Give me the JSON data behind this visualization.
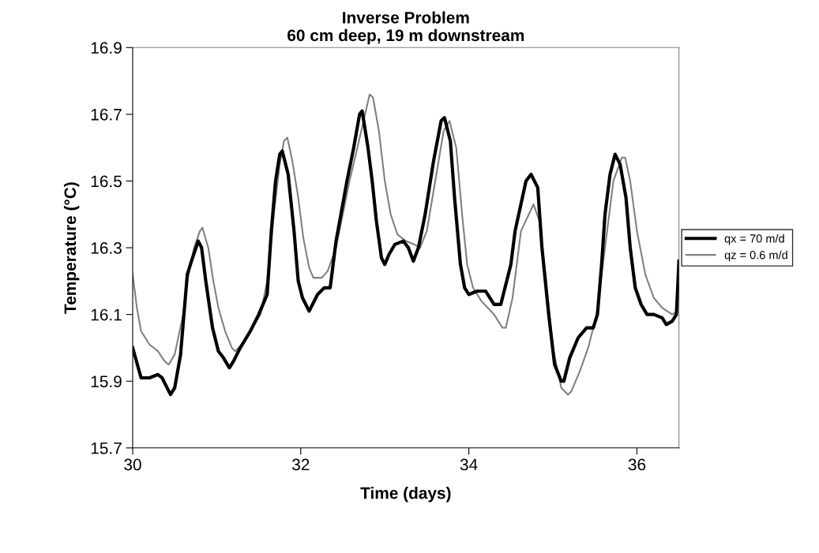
{
  "chart_data": {
    "type": "line",
    "title": "Inverse Problem\n60 cm deep, 19 m downstream",
    "xlabel": "Time (days)",
    "ylabel": "Temperature (°C)",
    "xlim": [
      30,
      36.5
    ],
    "xticks": [
      30,
      32,
      34,
      36
    ],
    "ylim": [
      15.7,
      16.9
    ],
    "yticks": [
      15.7,
      15.9,
      16.1,
      16.3,
      16.5,
      16.7,
      16.9
    ],
    "grid": false,
    "legend": "right",
    "marker": "none",
    "line_style": "solid",
    "series": [
      {
        "name": "qx = 70 m/d",
        "color": "#000000",
        "x": [
          30.0,
          30.1,
          30.2,
          30.3,
          30.35,
          30.45,
          30.5,
          30.57,
          30.65,
          30.7,
          30.78,
          30.82,
          30.87,
          30.95,
          31.02,
          31.08,
          31.15,
          31.2,
          31.28,
          31.4,
          31.5,
          31.6,
          31.65,
          31.7,
          31.75,
          31.78,
          31.85,
          31.92,
          31.97,
          32.02,
          32.1,
          32.2,
          32.28,
          32.35,
          32.42,
          32.55,
          32.63,
          32.7,
          32.73,
          32.8,
          32.85,
          32.9,
          32.96,
          33.0,
          33.05,
          33.12,
          33.22,
          33.28,
          33.34,
          33.4,
          33.48,
          33.58,
          33.67,
          33.71,
          33.78,
          33.83,
          33.9,
          33.95,
          34.0,
          34.1,
          34.2,
          34.3,
          34.38,
          34.5,
          34.55,
          34.68,
          34.74,
          34.82,
          34.87,
          34.95,
          35.02,
          35.1,
          35.13,
          35.2,
          35.3,
          35.4,
          35.48,
          35.53,
          35.58,
          35.62,
          35.68,
          35.74,
          35.8,
          35.87,
          35.92,
          35.98,
          36.05,
          36.12,
          36.2,
          36.3,
          36.35,
          36.42,
          36.47,
          36.5
        ],
        "values": [
          16.0,
          15.91,
          15.91,
          15.92,
          15.91,
          15.86,
          15.88,
          15.98,
          16.22,
          16.26,
          16.32,
          16.3,
          16.2,
          16.06,
          15.99,
          15.97,
          15.94,
          15.96,
          16.0,
          16.05,
          16.1,
          16.16,
          16.35,
          16.5,
          16.58,
          16.59,
          16.52,
          16.35,
          16.2,
          16.15,
          16.11,
          16.16,
          16.18,
          16.18,
          16.32,
          16.5,
          16.6,
          16.7,
          16.71,
          16.6,
          16.5,
          16.38,
          16.27,
          16.25,
          16.28,
          16.31,
          16.32,
          16.3,
          16.26,
          16.3,
          16.4,
          16.56,
          16.68,
          16.69,
          16.62,
          16.45,
          16.25,
          16.18,
          16.16,
          16.17,
          16.17,
          16.13,
          16.13,
          16.25,
          16.35,
          16.5,
          16.52,
          16.48,
          16.3,
          16.1,
          15.95,
          15.9,
          15.9,
          15.97,
          16.03,
          16.06,
          16.06,
          16.1,
          16.25,
          16.4,
          16.52,
          16.58,
          16.55,
          16.45,
          16.3,
          16.18,
          16.13,
          16.1,
          16.1,
          16.09,
          16.07,
          16.08,
          16.1,
          16.26
        ]
      },
      {
        "name": "qz = 0.6 m/d",
        "color": "#808080",
        "x": [
          30.0,
          30.05,
          30.1,
          30.2,
          30.3,
          30.38,
          30.43,
          30.5,
          30.6,
          30.65,
          30.73,
          30.8,
          30.83,
          30.9,
          30.96,
          31.02,
          31.1,
          31.18,
          31.22,
          31.3,
          31.4,
          31.52,
          31.6,
          31.68,
          31.75,
          31.8,
          31.84,
          31.9,
          31.97,
          32.03,
          32.1,
          32.15,
          32.25,
          32.32,
          32.42,
          32.58,
          32.72,
          32.82,
          32.86,
          32.93,
          33.0,
          33.07,
          33.15,
          33.25,
          33.35,
          33.42,
          33.5,
          33.6,
          33.7,
          33.77,
          33.85,
          33.92,
          33.98,
          34.05,
          34.15,
          34.3,
          34.4,
          34.44,
          34.52,
          34.62,
          34.77,
          34.84,
          34.92,
          35.0,
          35.1,
          35.18,
          35.22,
          35.32,
          35.42,
          35.52,
          35.62,
          35.72,
          35.82,
          35.86,
          35.92,
          36.0,
          36.1,
          36.2,
          36.3,
          36.42,
          36.48
        ],
        "values": [
          16.22,
          16.12,
          16.05,
          16.01,
          15.99,
          15.96,
          15.95,
          15.98,
          16.1,
          16.2,
          16.3,
          16.35,
          16.36,
          16.3,
          16.2,
          16.12,
          16.05,
          16.0,
          15.99,
          16.01,
          16.05,
          16.1,
          16.2,
          16.4,
          16.55,
          16.62,
          16.63,
          16.56,
          16.45,
          16.33,
          16.24,
          16.21,
          16.21,
          16.23,
          16.3,
          16.5,
          16.65,
          16.76,
          16.75,
          16.65,
          16.5,
          16.4,
          16.34,
          16.32,
          16.31,
          16.3,
          16.35,
          16.5,
          16.65,
          16.68,
          16.6,
          16.4,
          16.25,
          16.18,
          16.14,
          16.1,
          16.06,
          16.06,
          16.15,
          16.35,
          16.43,
          16.38,
          16.2,
          16.0,
          15.88,
          15.86,
          15.87,
          15.93,
          16.0,
          16.1,
          16.3,
          16.5,
          16.57,
          16.57,
          16.5,
          16.35,
          16.22,
          16.15,
          16.12,
          16.1,
          16.11
        ]
      }
    ]
  }
}
